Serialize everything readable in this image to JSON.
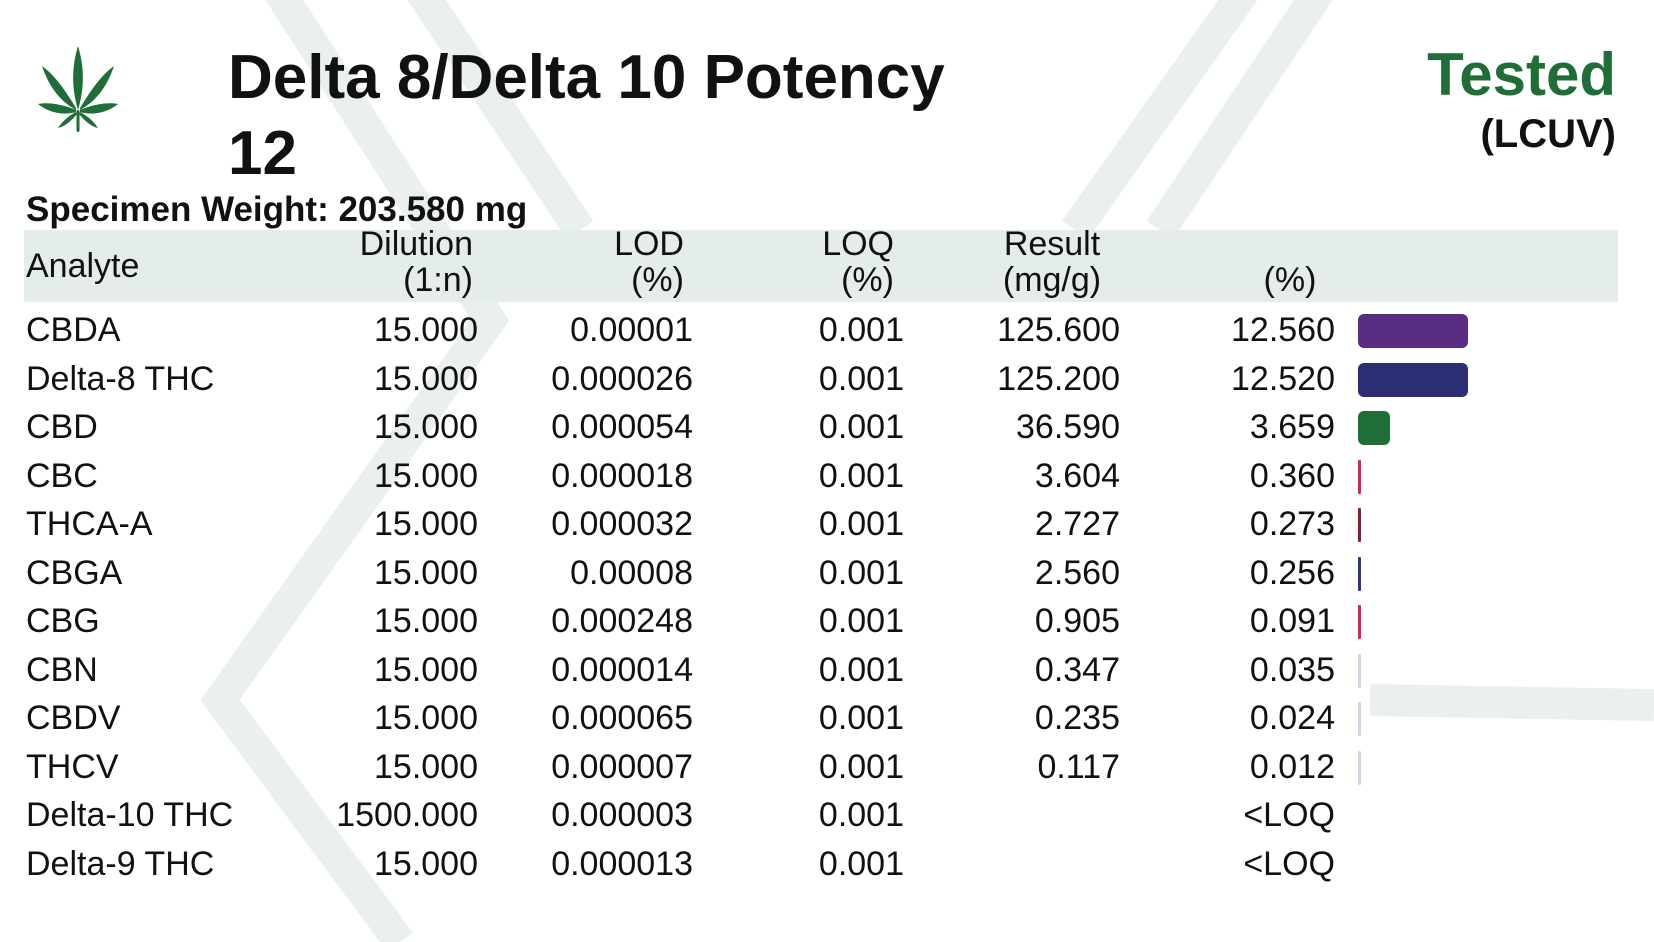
{
  "header": {
    "title": "Delta 8/Delta 10 Potency",
    "subtitle": "12",
    "status_label": "Tested",
    "method_label": "(LCUV)",
    "specimen_weight": "Specimen Weight: 203.580 mg"
  },
  "table": {
    "columns": {
      "analyte": "Analyte",
      "dilution_top": "Dilution",
      "dilution_bottom": "(1:n)",
      "lod_top": "LOD",
      "lod_bottom": "(%)",
      "loq_top": "LOQ",
      "loq_bottom": "(%)",
      "result_top": "Result",
      "result_bottom": "(mg/g)",
      "percent": "(%)"
    },
    "rows": [
      {
        "analyte": "CBDA",
        "dilution": "15.000",
        "lod": "0.00001",
        "loq": "0.001",
        "result": "125.600",
        "percent": "12.560",
        "bar_value": 12.56,
        "bar_color": "#582d82"
      },
      {
        "analyte": "Delta-8 THC",
        "dilution": "15.000",
        "lod": "0.000026",
        "loq": "0.001",
        "result": "125.200",
        "percent": "12.520",
        "bar_value": 12.52,
        "bar_color": "#2b2e72"
      },
      {
        "analyte": "CBD",
        "dilution": "15.000",
        "lod": "0.000054",
        "loq": "0.001",
        "result": "36.590",
        "percent": "3.659",
        "bar_value": 3.659,
        "bar_color": "#1f6e37"
      },
      {
        "analyte": "CBC",
        "dilution": "15.000",
        "lod": "0.000018",
        "loq": "0.001",
        "result": "3.604",
        "percent": "0.360",
        "bar_value": 0.36,
        "bar_color": "#d8254f"
      },
      {
        "analyte": "THCA-A",
        "dilution": "15.000",
        "lod": "0.000032",
        "loq": "0.001",
        "result": "2.727",
        "percent": "0.273",
        "bar_value": 0.273,
        "bar_color": "#8b1b2c"
      },
      {
        "analyte": "CBGA",
        "dilution": "15.000",
        "lod": "0.00008",
        "loq": "0.001",
        "result": "2.560",
        "percent": "0.256",
        "bar_value": 0.256,
        "bar_color": "#2c3483"
      },
      {
        "analyte": "CBG",
        "dilution": "15.000",
        "lod": "0.000248",
        "loq": "0.001",
        "result": "0.905",
        "percent": "0.091",
        "bar_value": 0.091,
        "bar_color": "#d8254f"
      },
      {
        "analyte": "CBN",
        "dilution": "15.000",
        "lod": "0.000014",
        "loq": "0.001",
        "result": "0.347",
        "percent": "0.035",
        "bar_value": 0.035,
        "bar_color": "#d4d6e6"
      },
      {
        "analyte": "CBDV",
        "dilution": "15.000",
        "lod": "0.000065",
        "loq": "0.001",
        "result": "0.235",
        "percent": "0.024",
        "bar_value": 0.024,
        "bar_color": "#d4d6e6"
      },
      {
        "analyte": "THCV",
        "dilution": "15.000",
        "lod": "0.000007",
        "loq": "0.001",
        "result": "0.117",
        "percent": "0.012",
        "bar_value": 0.012,
        "bar_color": "#d4d6e6"
      },
      {
        "analyte": "Delta-10 THC",
        "dilution": "1500.000",
        "lod": "0.000003",
        "loq": "0.001",
        "result": "",
        "percent": "<LOQ",
        "bar_value": 0,
        "bar_color": "#ffffff"
      },
      {
        "analyte": "Delta-9 THC",
        "dilution": "15.000",
        "lod": "0.000013",
        "loq": "0.001",
        "result": "",
        "percent": "<LOQ",
        "bar_value": 0,
        "bar_color": "#ffffff"
      }
    ]
  },
  "colors": {
    "brand_green": "#1f6e37",
    "header_band": "#e5ede9",
    "background_mark": "#eaf0ec"
  },
  "icons": {
    "logo": "cannabis-leaf-icon"
  }
}
